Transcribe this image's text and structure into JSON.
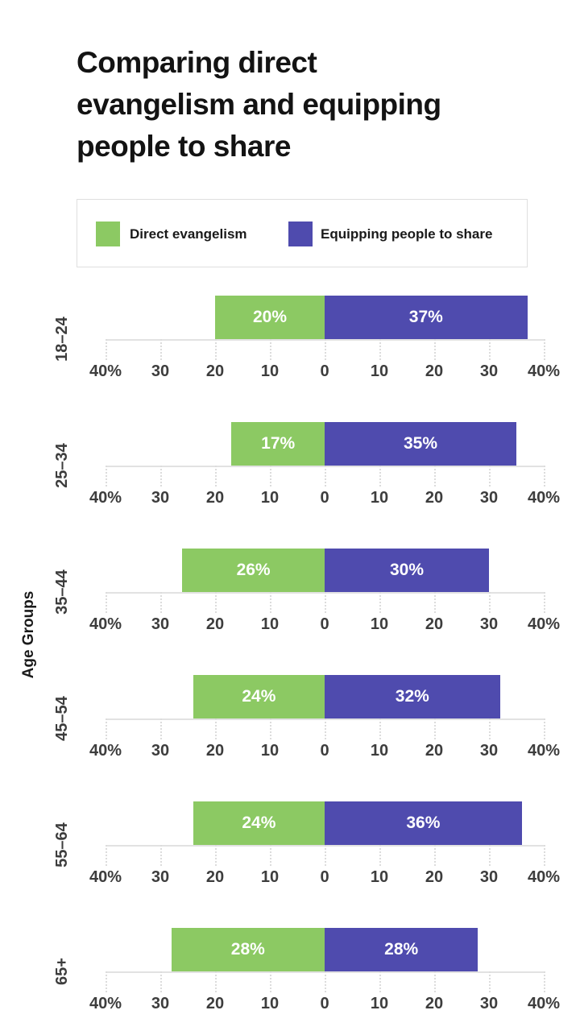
{
  "header": {
    "title_lines": [
      "Comparing direct",
      "evangelism and equipping",
      "people to share"
    ]
  },
  "legend": {
    "items": [
      {
        "label": "Direct evangelism",
        "color": "#8CC963"
      },
      {
        "label": "Equipping people to share",
        "color": "#4F4BAE"
      }
    ]
  },
  "colors": {
    "direct_evangelism": "#8CC963",
    "equipping": "#4F4BAE",
    "axis_line": "#E2E2E2",
    "tick_line": "#DCDCDC",
    "tick_label": "#3D3D3D",
    "title_text": "#131313",
    "legend_border": "#DFDFDF",
    "bar_value_text": "#FFFFFF"
  },
  "chart_data": {
    "type": "bar",
    "variant": "diverging-horizontal",
    "title": "Comparing direct evangelism and equipping people to share",
    "ylabel": "Age Groups",
    "categories": [
      "18–24",
      "25–34",
      "35–44",
      "45–54",
      "55–64",
      "65+"
    ],
    "series": [
      {
        "name": "Direct evangelism",
        "direction": "left",
        "color": "#8CC963",
        "values": [
          20,
          17,
          26,
          24,
          24,
          28
        ]
      },
      {
        "name": "Equipping people to share",
        "direction": "right",
        "color": "#4F4BAE",
        "values": [
          37,
          35,
          30,
          32,
          36,
          28
        ]
      }
    ],
    "value_suffix": "%",
    "bar_labels": {
      "direct": [
        "20%",
        "17%",
        "26%",
        "24%",
        "24%",
        "28%"
      ],
      "equipping": [
        "37%",
        "35%",
        "30%",
        "32%",
        "36%",
        "28%"
      ]
    },
    "axis_tick_labels": [
      "40%",
      "30",
      "20",
      "10",
      "0",
      "10",
      "20",
      "30",
      "40%"
    ],
    "xlim": [
      -40,
      40
    ],
    "grid": "dotted ticks below axis only",
    "legend_position": "top"
  }
}
